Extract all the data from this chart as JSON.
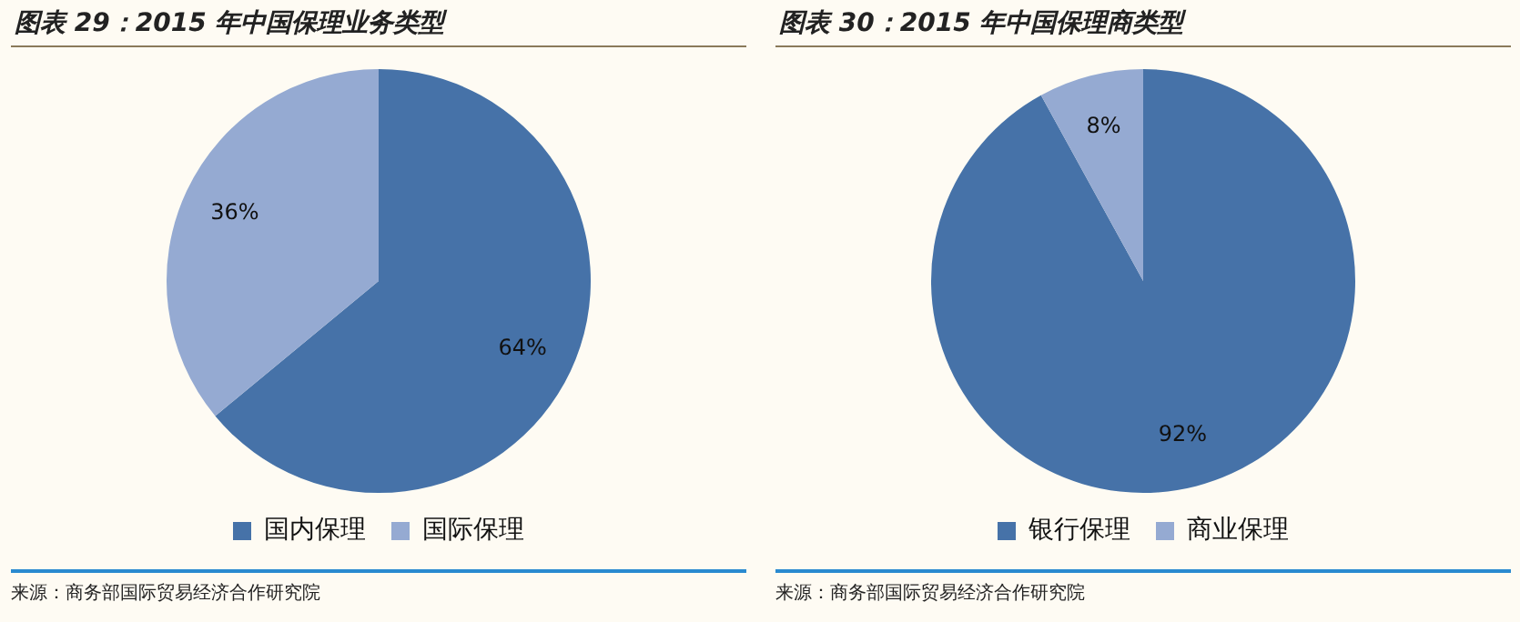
{
  "chart_data": [
    {
      "type": "pie",
      "title": "图表 29：2015 年中国保理业务类型",
      "categories": [
        "国内保理",
        "国际保理"
      ],
      "values": [
        64,
        36
      ],
      "colors": [
        "#4672a8",
        "#95aad2"
      ],
      "value_labels": [
        "64%",
        "36%"
      ],
      "legend": "bottom",
      "annotations": [
        "来源：商务部国际贸易经济合作研究院"
      ]
    },
    {
      "type": "pie",
      "title": "图表 30：2015 年中国保理商类型",
      "categories": [
        "银行保理",
        "商业保理"
      ],
      "values": [
        92,
        8
      ],
      "colors": [
        "#4672a8",
        "#95aad2"
      ],
      "value_labels": [
        "92%",
        "8%"
      ],
      "legend": "bottom",
      "annotations": [
        "来源：商务部国际贸易经济合作研究院"
      ]
    }
  ]
}
